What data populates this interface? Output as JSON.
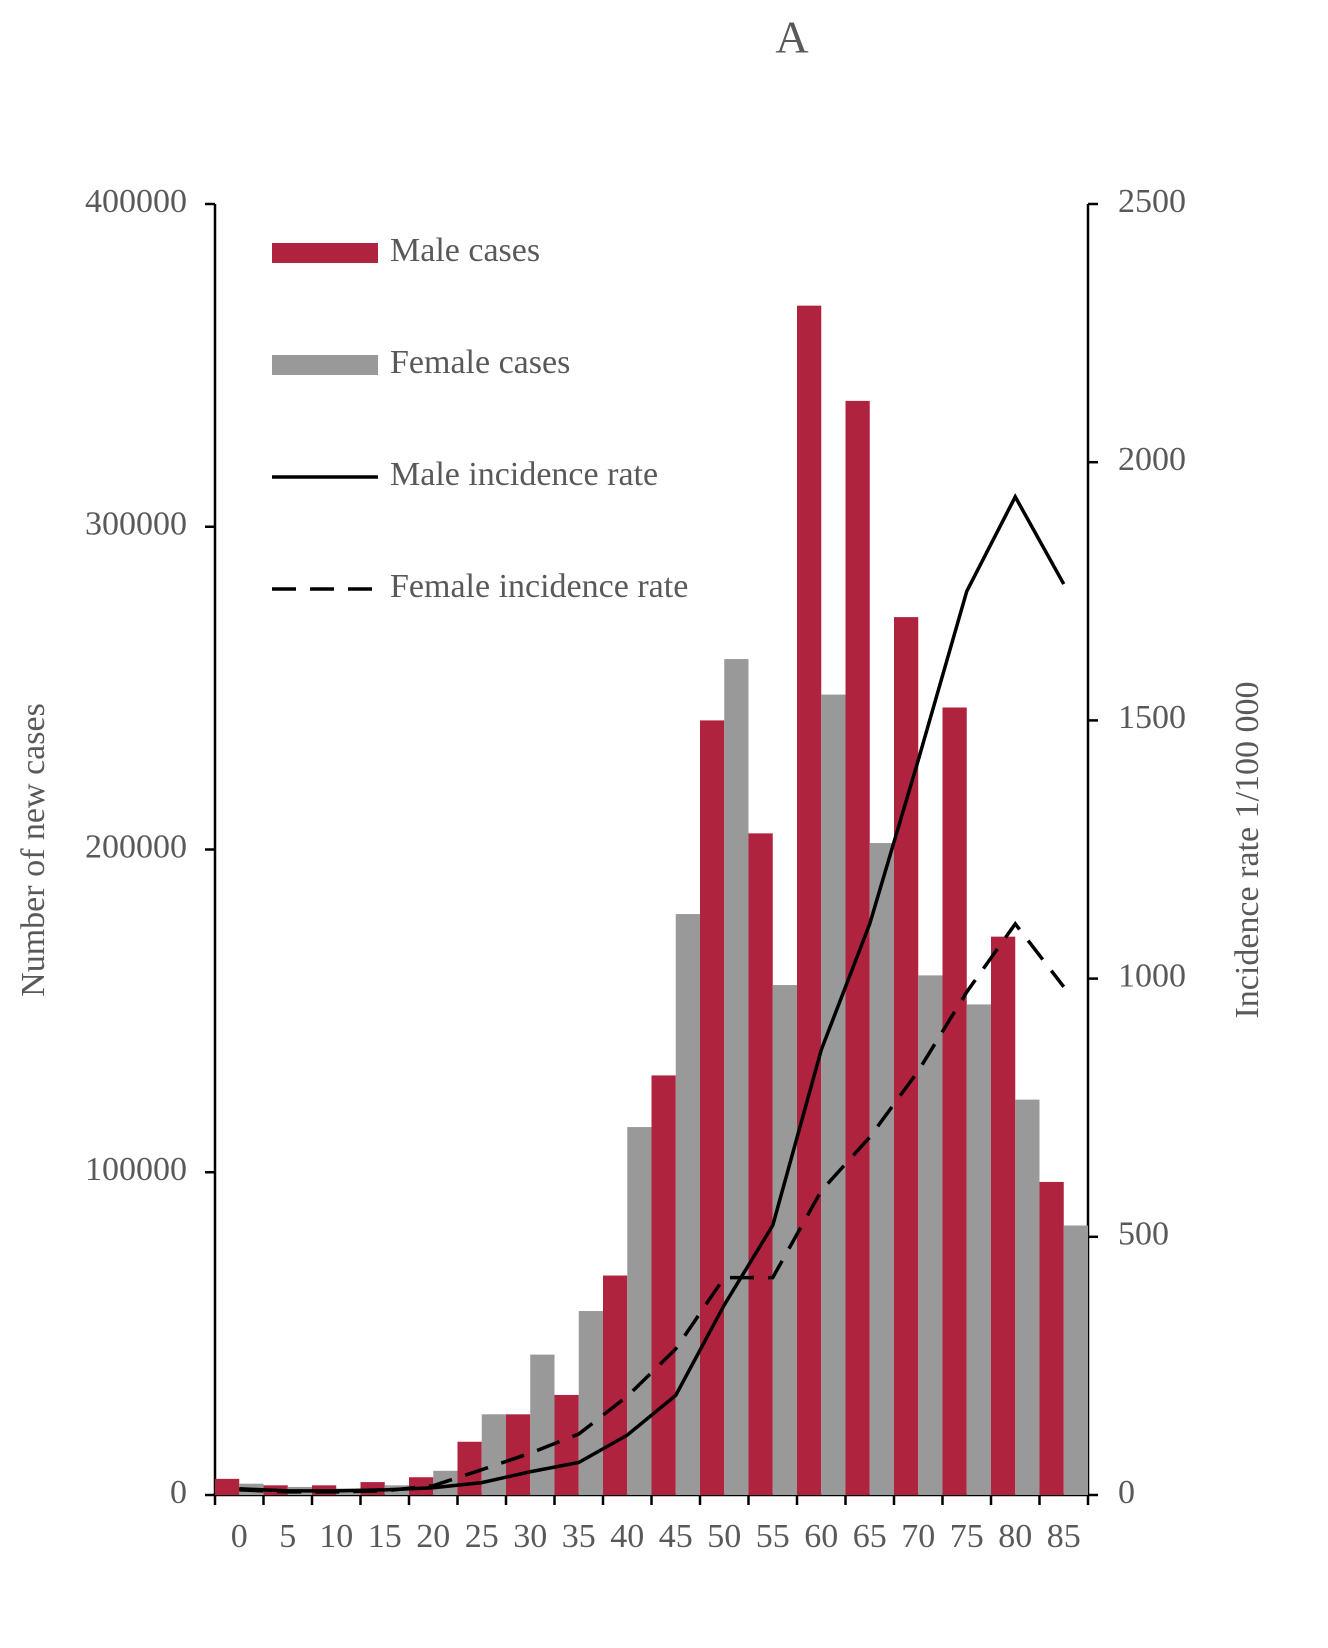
{
  "chart_data": {
    "type": "bar_line",
    "title": "A",
    "y_label": "Number of new cases",
    "y2_label": "Incidence rate 1/100 000",
    "categories": [
      "0",
      "5",
      "10",
      "15",
      "20",
      "25",
      "30",
      "35",
      "40",
      "45",
      "50",
      "55",
      "60",
      "65",
      "70",
      "75",
      "80",
      "85"
    ],
    "ylim": [
      0,
      400000
    ],
    "yticks": [
      0,
      100000,
      200000,
      300000,
      400000
    ],
    "y2lim": [
      0,
      2500
    ],
    "y2ticks": [
      0,
      500,
      1000,
      1500,
      2000,
      2500
    ],
    "legend": "top-left",
    "series": [
      {
        "name": "Male cases",
        "kind": "bar",
        "color": "#b0233f",
        "values": [
          5000,
          3000,
          3000,
          4000,
          5500,
          16500,
          25000,
          31000,
          68000,
          130000,
          240000,
          205000,
          368500,
          339000,
          272000,
          244000,
          173000,
          97000
        ]
      },
      {
        "name": "Female cases",
        "kind": "bar",
        "color": "#999999",
        "values": [
          3500,
          2500,
          2000,
          3000,
          7500,
          25000,
          43500,
          57000,
          114000,
          180000,
          259000,
          158000,
          248000,
          202000,
          161000,
          152000,
          122500,
          83500
        ]
      },
      {
        "name": "Male incidence rate",
        "kind": "line",
        "axis": "y2",
        "color": "#000000",
        "dash": "solid",
        "values": [
          12,
          8,
          8,
          10,
          14,
          24,
          45,
          63,
          116,
          193,
          368,
          522,
          862,
          1106,
          1423,
          1750,
          1933,
          1764
        ]
      },
      {
        "name": "Female incidence rate",
        "kind": "line",
        "axis": "y2",
        "color": "#000000",
        "dash": "dashed",
        "values": [
          10,
          6,
          6,
          8,
          18,
          49,
          81,
          118,
          191,
          283,
          421,
          421,
          589,
          693,
          821,
          974,
          1106,
          984
        ]
      }
    ]
  }
}
